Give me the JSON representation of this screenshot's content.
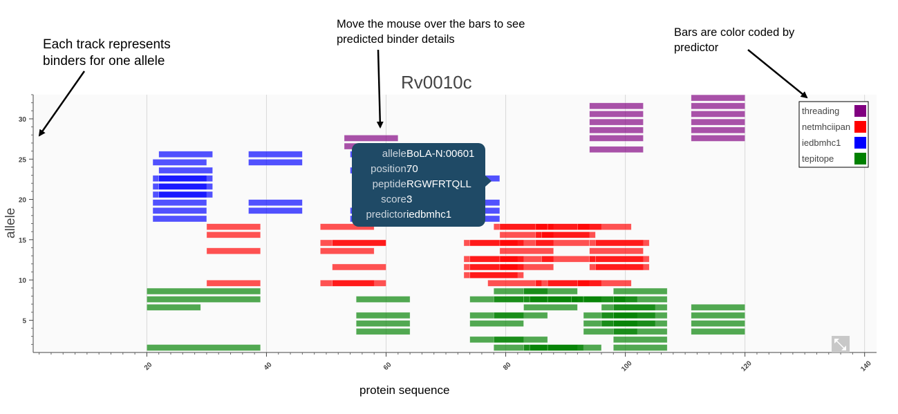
{
  "annotations": {
    "left": [
      "Each track represents",
      "binders for one allele"
    ],
    "middle": [
      "Move the mouse over the bars to see",
      "predicted binder details"
    ],
    "right": [
      "Bars are color coded by",
      "predictor"
    ]
  },
  "tooltip": {
    "rows": [
      {
        "key": "allele:",
        "value": "BoLA-N:00601"
      },
      {
        "key": "position:",
        "value": "70"
      },
      {
        "key": "peptide:",
        "value": "RGWFRTQLL"
      },
      {
        "key": "score:",
        "value": "3"
      },
      {
        "key": "predictor:",
        "value": "iedbmhc1"
      }
    ]
  },
  "toolbar": {
    "resize_icon": "resize-arrows-icon"
  },
  "chart_data": {
    "type": "bar",
    "orientation": "horizontal-segments",
    "title": "Rv0010c",
    "xlabel": "protein sequence",
    "ylabel": "allele",
    "xlim": [
      1,
      142
    ],
    "ylim": [
      1,
      33
    ],
    "xticks": [
      20,
      40,
      60,
      80,
      100,
      120,
      140
    ],
    "yticks": [
      5,
      10,
      15,
      20,
      25,
      30
    ],
    "grid": true,
    "legend_placement": "top-right",
    "colors": {
      "threading": "#800080",
      "netmhciipan": "#ff0000",
      "iedbmhc1": "#0000ff",
      "tepitope": "#008000"
    },
    "series": [
      {
        "name": "threading",
        "color": "#800080",
        "bars": [
          [
            94,
            103,
            31.6
          ],
          [
            94,
            103,
            30.6
          ],
          [
            94,
            103,
            29.6
          ],
          [
            94,
            103,
            28.6
          ],
          [
            94,
            103,
            27.6
          ],
          [
            94,
            103,
            26.2
          ],
          [
            111,
            120,
            32.6
          ],
          [
            111,
            120,
            31.6
          ],
          [
            111,
            120,
            30.6
          ],
          [
            111,
            120,
            29.6
          ],
          [
            111,
            120,
            28.6
          ],
          [
            111,
            120,
            27.6
          ],
          [
            53,
            62,
            27.6
          ],
          [
            53,
            62,
            26.6
          ]
        ]
      },
      {
        "name": "netmhciipan",
        "color": "#ff0000",
        "bars": [
          [
            30,
            39,
            16.6
          ],
          [
            30,
            39,
            15.6
          ],
          [
            30,
            39,
            13.6
          ],
          [
            30,
            39,
            9.6
          ],
          [
            49,
            58,
            16.6
          ],
          [
            49,
            58,
            13.6
          ],
          [
            49,
            58,
            9.6
          ],
          [
            49,
            60,
            14.6
          ],
          [
            51,
            60,
            11.6
          ],
          [
            51,
            60,
            14.6
          ],
          [
            51,
            60,
            9.6
          ],
          [
            78,
            87,
            16.6
          ],
          [
            79,
            88,
            16.6
          ],
          [
            85,
            94,
            16.6
          ],
          [
            87,
            96,
            16.6
          ],
          [
            92,
            101,
            16.6
          ],
          [
            79,
            88,
            15.6
          ],
          [
            85,
            94,
            15.6
          ],
          [
            86,
            95,
            15.6
          ],
          [
            73,
            82,
            14.6
          ],
          [
            74,
            83,
            14.6
          ],
          [
            79,
            88,
            14.6
          ],
          [
            85,
            94,
            14.6
          ],
          [
            94,
            103,
            14.6
          ],
          [
            95,
            104,
            14.6
          ],
          [
            79,
            88,
            13.6
          ],
          [
            94,
            103,
            13.6
          ],
          [
            73,
            82,
            12.6
          ],
          [
            74,
            83,
            12.6
          ],
          [
            79,
            88,
            12.6
          ],
          [
            86,
            95,
            12.6
          ],
          [
            94,
            103,
            12.6
          ],
          [
            95,
            104,
            12.6
          ],
          [
            73,
            82,
            11.6
          ],
          [
            74,
            83,
            11.6
          ],
          [
            79,
            88,
            11.6
          ],
          [
            94,
            103,
            11.6
          ],
          [
            95,
            104,
            11.6
          ],
          [
            73,
            82,
            10.6
          ],
          [
            74,
            83,
            10.6
          ],
          [
            77,
            86,
            9.6
          ],
          [
            85,
            94,
            9.6
          ],
          [
            87,
            96,
            9.6
          ],
          [
            92,
            101,
            9.6
          ]
        ]
      },
      {
        "name": "iedbmhc1",
        "color": "#0000ff",
        "bars": [
          [
            22,
            31,
            25.6
          ],
          [
            21,
            30,
            24.6
          ],
          [
            22,
            31,
            23.6
          ],
          [
            21,
            30,
            22.6
          ],
          [
            22,
            31,
            22.6
          ],
          [
            21,
            30,
            21.6
          ],
          [
            22,
            31,
            21.6
          ],
          [
            21,
            30,
            20.6
          ],
          [
            22,
            31,
            20.6
          ],
          [
            21,
            30,
            19.6
          ],
          [
            21,
            30,
            18.6
          ],
          [
            21,
            30,
            17.6
          ],
          [
            37,
            46,
            25.6
          ],
          [
            37,
            46,
            24.6
          ],
          [
            37,
            46,
            19.6
          ],
          [
            37,
            46,
            18.6
          ],
          [
            54,
            63,
            25.6
          ],
          [
            54,
            63,
            23.6
          ],
          [
            54,
            63,
            18.6
          ],
          [
            54,
            63,
            17.6
          ],
          [
            70,
            79,
            22.6
          ],
          [
            70,
            79,
            19.6
          ],
          [
            70,
            79,
            18.6
          ],
          [
            70,
            79,
            17.6
          ]
        ]
      },
      {
        "name": "tepitope",
        "color": "#008000",
        "bars": [
          [
            20,
            39,
            8.6
          ],
          [
            20,
            39,
            7.6
          ],
          [
            20,
            29,
            6.6
          ],
          [
            20,
            39,
            1.6
          ],
          [
            55,
            64,
            7.6
          ],
          [
            55,
            64,
            5.6
          ],
          [
            55,
            64,
            4.6
          ],
          [
            55,
            64,
            3.6
          ],
          [
            78,
            87,
            8.6
          ],
          [
            83,
            92,
            8.6
          ],
          [
            98,
            107,
            8.6
          ],
          [
            74,
            83,
            7.6
          ],
          [
            78,
            87,
            7.6
          ],
          [
            83,
            92,
            7.6
          ],
          [
            84,
            93,
            7.6
          ],
          [
            87,
            96,
            7.6
          ],
          [
            91,
            100,
            7.6
          ],
          [
            93,
            102,
            7.6
          ],
          [
            98,
            107,
            7.6
          ],
          [
            83,
            92,
            6.6
          ],
          [
            96,
            105,
            6.6
          ],
          [
            98,
            107,
            6.6
          ],
          [
            74,
            83,
            5.6
          ],
          [
            78,
            87,
            5.6
          ],
          [
            93,
            102,
            5.6
          ],
          [
            96,
            105,
            5.6
          ],
          [
            98,
            107,
            5.6
          ],
          [
            74,
            83,
            4.6
          ],
          [
            93,
            102,
            4.6
          ],
          [
            96,
            105,
            4.6
          ],
          [
            98,
            107,
            4.6
          ],
          [
            93,
            102,
            3.6
          ],
          [
            98,
            107,
            3.6
          ],
          [
            74,
            83,
            2.6
          ],
          [
            78,
            87,
            2.6
          ],
          [
            98,
            107,
            2.6
          ],
          [
            78,
            87,
            1.6
          ],
          [
            83,
            92,
            1.6
          ],
          [
            84,
            93,
            1.6
          ],
          [
            87,
            96,
            1.6
          ],
          [
            98,
            107,
            1.6
          ],
          [
            111,
            120,
            6.6
          ],
          [
            111,
            120,
            5.6
          ],
          [
            111,
            120,
            4.6
          ],
          [
            111,
            120,
            3.6
          ]
        ]
      }
    ]
  }
}
